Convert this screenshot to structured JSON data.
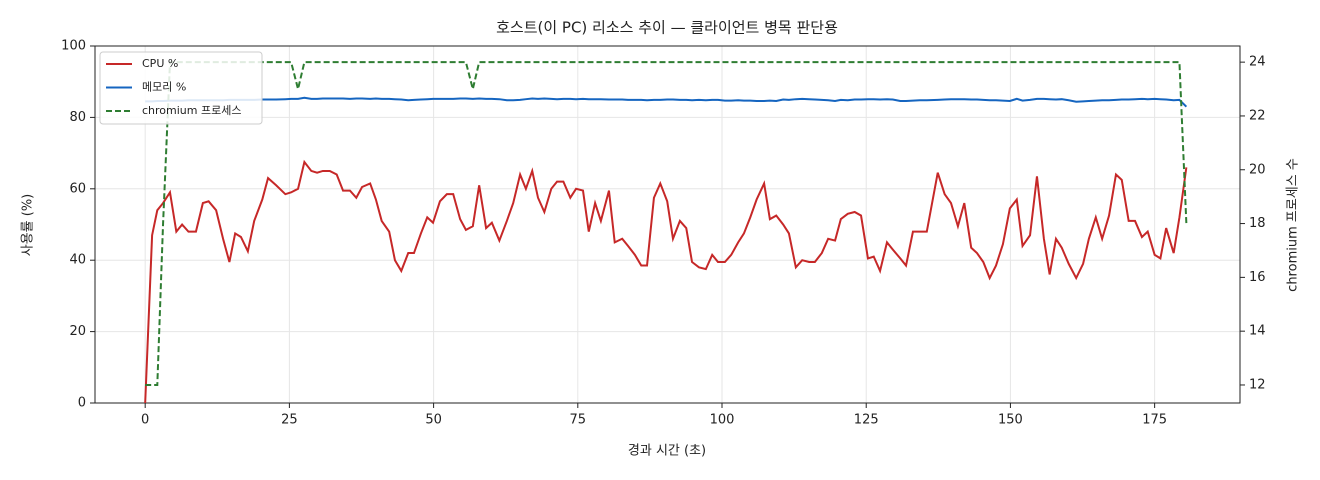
{
  "chart_data": {
    "type": "line",
    "title": "호스트(이 PC) 리소스 추이 — 클라이언트 병목 판단용",
    "xlabel": "경과 시간 (초)",
    "ylabel": "사용률 (%)",
    "y2label": "chromium 프로세스 수",
    "x": [
      0,
      1.2,
      2.1,
      3.1,
      4.3,
      5.4,
      6.4,
      7.5,
      8.8,
      10,
      11,
      12.3,
      13.5,
      14.6,
      15.6,
      16.6,
      17.8,
      18.9,
      20.3,
      21.3,
      22.7,
      24.3,
      25.3,
      26.5,
      27.6,
      28.8,
      29.8,
      30.8,
      32,
      33.2,
      34.3,
      35.5,
      36.6,
      37.6,
      39,
      40,
      41,
      42.3,
      43.3,
      44.4,
      45.6,
      46.6,
      47.8,
      48.9,
      49.9,
      51.1,
      52.3,
      53.4,
      54.6,
      55.6,
      56.8,
      57.9,
      59.1,
      60.1,
      61.4,
      62.7,
      63.8,
      65,
      66,
      67.1,
      68.1,
      69.2,
      70.4,
      71.4,
      72.5,
      73.7,
      74.7,
      75.9,
      76.9,
      78,
      79,
      80.4,
      81.4,
      82.7,
      83.7,
      84.9,
      86,
      87,
      88.2,
      89.3,
      90.5,
      91.5,
      92.7,
      93.8,
      94.8,
      96,
      97.2,
      98.3,
      99.3,
      100.5,
      101.6,
      102.8,
      103.8,
      104.9,
      106,
      107.3,
      108.3,
      109.4,
      110.6,
      111.6,
      112.8,
      113.9,
      115.1,
      116.1,
      117.3,
      118.4,
      119.6,
      120.6,
      121.8,
      123,
      124.1,
      125.3,
      126.3,
      127.4,
      128.6,
      129.6,
      130.9,
      131.9,
      133.1,
      134.3,
      135.5,
      137.4,
      138.6,
      139.7,
      140.9,
      142,
      143.2,
      144.2,
      145.3,
      146.4,
      147.5,
      148.7,
      149.9,
      151.1,
      152.1,
      153.4,
      154.6,
      155.8,
      156.8,
      157.9,
      158.9,
      160.1,
      161.4,
      162.6,
      163.6,
      164.8,
      165.9,
      167.1,
      168.3,
      169.3,
      170.5,
      171.6,
      172.8,
      173.8,
      175,
      176,
      177,
      178.3,
      179.3,
      180.5
    ],
    "series": [
      {
        "name": "CPU %",
        "color": "#c62828",
        "style": "solid",
        "values": [
          0,
          47,
          54,
          56,
          59,
          48,
          50,
          48,
          48,
          56,
          56.5,
          54,
          46,
          39.5,
          47.5,
          46.5,
          42.5,
          51,
          57,
          63,
          61,
          58.5,
          59,
          60,
          67.5,
          65,
          64.5,
          65,
          65,
          64,
          59.5,
          59.5,
          57.5,
          60.5,
          61.5,
          57,
          51,
          48,
          40,
          37,
          42,
          42,
          47.5,
          52,
          50.5,
          56.5,
          58.5,
          58.5,
          51.5,
          48.5,
          49.5,
          61,
          49,
          50.5,
          45.5,
          51,
          56,
          64,
          60,
          65,
          57.5,
          53.5,
          60,
          62,
          62,
          57.5,
          60,
          59.5,
          48,
          56,
          51,
          59.5,
          45,
          46,
          44,
          41.5,
          38.5,
          38.5,
          57.5,
          61.5,
          56.5,
          46,
          51,
          49,
          39.5,
          38,
          37.5,
          41.5,
          39.5,
          39.5,
          41.5,
          45,
          47.5,
          52,
          57,
          61.5,
          51.5,
          52.5,
          50,
          47.5,
          38,
          40,
          39.5,
          39.5,
          42,
          46,
          45.5,
          51.5,
          53,
          53.5,
          52.5,
          40.5,
          41,
          37,
          45,
          43,
          40.5,
          38.5,
          48,
          48,
          48,
          64.5,
          58.5,
          56,
          49.5,
          56,
          43.5,
          42,
          39.5,
          35,
          38.5,
          44.5,
          54.5,
          57,
          44,
          47,
          63.5,
          46,
          36,
          46,
          43.5,
          39,
          35,
          39,
          46,
          52,
          46,
          52.5,
          64,
          62.5,
          51,
          51,
          46.5,
          48,
          41.5,
          40.5,
          49,
          42,
          52,
          66
        ]
      },
      {
        "name": "메모리 %",
        "color": "#1565c0",
        "style": "solid",
        "values": [
          84.5,
          84.5,
          84.6,
          84.6,
          84.7,
          84.7,
          84.7,
          84.8,
          84.8,
          84.8,
          84.8,
          84.8,
          84.8,
          84.9,
          84.9,
          84.9,
          84.9,
          84.9,
          85,
          85,
          85,
          85.1,
          85.2,
          85.2,
          85.5,
          85.2,
          85.2,
          85.3,
          85.3,
          85.3,
          85.3,
          85.2,
          85.3,
          85.3,
          85.2,
          85.3,
          85.2,
          85.2,
          85.1,
          85,
          84.8,
          84.9,
          85,
          85.1,
          85.2,
          85.2,
          85.2,
          85.2,
          85.3,
          85.3,
          85.2,
          85.3,
          85.2,
          85.2,
          85.1,
          84.8,
          84.8,
          84.9,
          85.1,
          85.3,
          85.2,
          85.3,
          85.2,
          85.1,
          85.2,
          85.2,
          85.1,
          85.2,
          85.1,
          85.1,
          85.1,
          85,
          85,
          85,
          84.9,
          84.9,
          84.9,
          84.8,
          84.9,
          84.9,
          85,
          85,
          84.9,
          84.9,
          84.8,
          84.9,
          84.8,
          84.9,
          84.9,
          84.7,
          84.7,
          84.8,
          84.7,
          84.7,
          84.6,
          84.6,
          84.7,
          84.6,
          85,
          84.9,
          85.1,
          85.2,
          85.1,
          85,
          84.9,
          84.8,
          84.6,
          84.9,
          84.8,
          85,
          85,
          85.1,
          85.1,
          85,
          85.1,
          85,
          84.6,
          84.6,
          84.7,
          84.8,
          84.8,
          84.9,
          85,
          85.1,
          85.1,
          85.1,
          85,
          85,
          84.9,
          84.8,
          84.8,
          84.7,
          84.6,
          85.2,
          84.7,
          84.9,
          85.2,
          85.2,
          85.1,
          85,
          85.1,
          84.8,
          84.4,
          84.5,
          84.6,
          84.7,
          84.8,
          84.8,
          84.9,
          85,
          85,
          85.1,
          85.2,
          85.1,
          85.2,
          85.1,
          85,
          84.8,
          84.9,
          83
        ]
      },
      {
        "name": "chromium 프로세스",
        "color": "#2e7d32",
        "style": "dashed",
        "axis": "y2",
        "values": [
          12,
          12,
          12,
          18,
          24,
          24,
          24,
          24,
          24,
          24,
          24,
          24,
          24,
          24,
          24,
          24,
          24,
          24,
          24,
          24,
          24,
          24,
          24,
          23,
          24,
          24,
          24,
          24,
          24,
          24,
          24,
          24,
          24,
          24,
          24,
          24,
          24,
          24,
          24,
          24,
          24,
          24,
          24,
          24,
          24,
          24,
          24,
          24,
          24,
          24,
          23,
          24,
          24,
          24,
          24,
          24,
          24,
          24,
          24,
          24,
          24,
          24,
          24,
          24,
          24,
          24,
          24,
          24,
          24,
          24,
          24,
          24,
          24,
          24,
          24,
          24,
          24,
          24,
          24,
          24,
          24,
          24,
          24,
          24,
          24,
          24,
          24,
          24,
          24,
          24,
          24,
          24,
          24,
          24,
          24,
          24,
          24,
          24,
          24,
          24,
          24,
          24,
          24,
          24,
          24,
          24,
          24,
          24,
          24,
          24,
          24,
          24,
          24,
          24,
          24,
          24,
          24,
          24,
          24,
          24,
          24,
          24,
          24,
          24,
          24,
          24,
          24,
          24,
          24,
          24,
          24,
          24,
          24,
          24,
          24,
          24,
          24,
          24,
          24,
          24,
          24,
          24,
          24,
          24,
          24,
          24,
          24,
          24,
          24,
          24,
          24,
          24,
          24,
          24,
          24,
          24,
          24,
          24,
          24,
          18
        ]
      }
    ],
    "xlim": [
      -8.7,
      189.8
    ],
    "xticks": [
      0,
      25,
      50,
      75,
      100,
      125,
      150,
      175
    ],
    "ylim": [
      0,
      100
    ],
    "yticks": [
      0,
      20,
      40,
      60,
      80,
      100
    ],
    "y2lim": [
      11.33,
      24.6
    ],
    "y2ticks": [
      12,
      14,
      16,
      18,
      20,
      22,
      24
    ],
    "grid": true,
    "legend": "upper-left"
  }
}
